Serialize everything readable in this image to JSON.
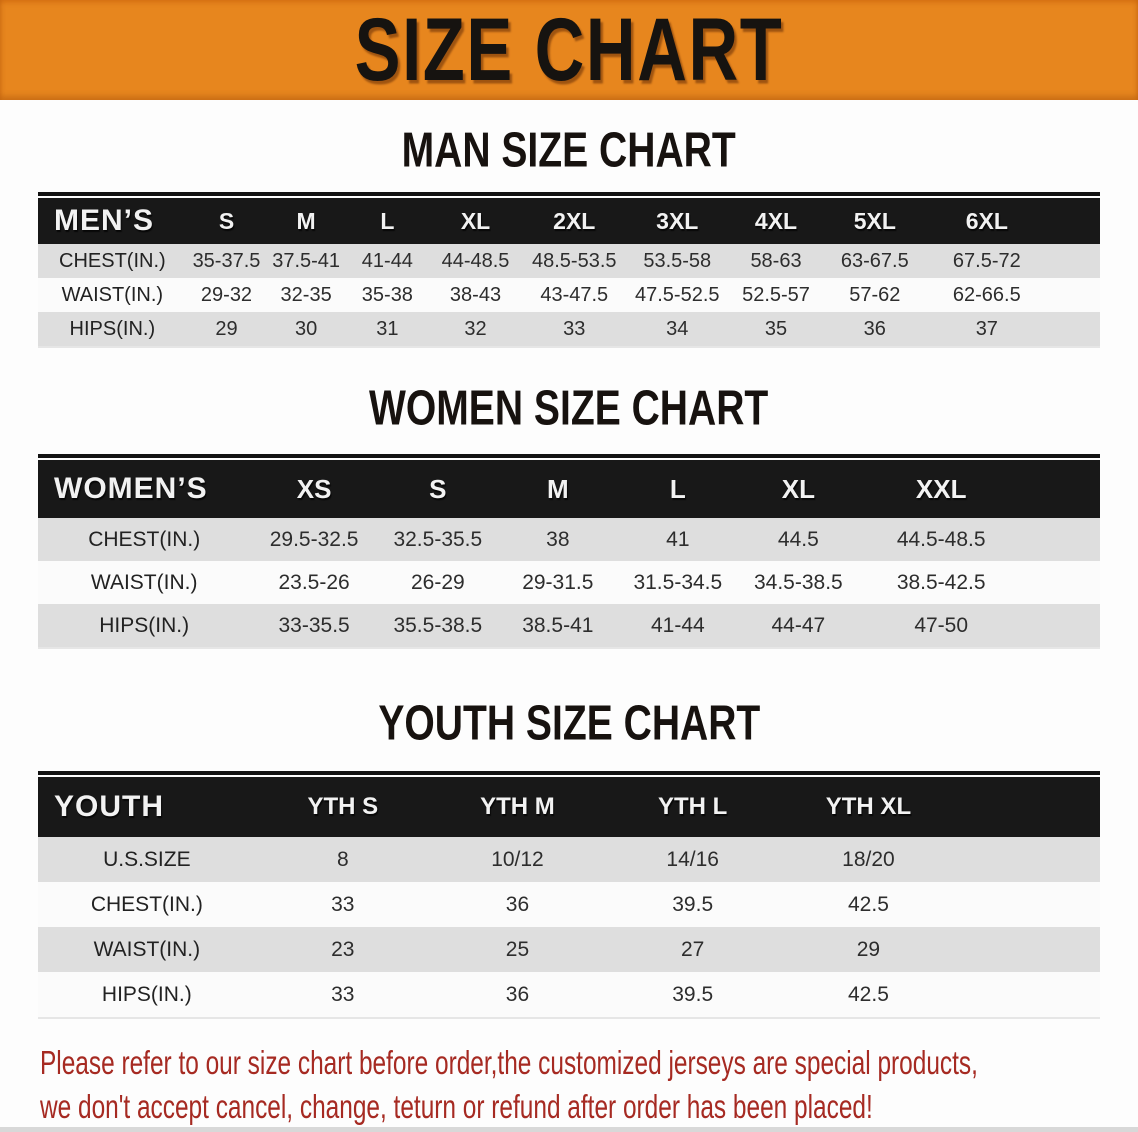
{
  "banner": {
    "title": "SIZE CHART"
  },
  "colors": {
    "banner_bg": "#E7861E",
    "banner_text": "#161310",
    "header_bar_bg": "#181818",
    "header_bar_text": "#F2F2F2",
    "row_gray": "#DEDEDE",
    "row_white": "#FBFBFB",
    "footer_red": "#A62A22"
  },
  "men": {
    "heading": "MAN SIZE CHART",
    "columns": [
      "MEN’S",
      "S",
      "M",
      "L",
      "XL",
      "2XL",
      "3XL",
      "4XL",
      "5XL",
      "6XL"
    ],
    "rows": [
      {
        "label": "CHEST(IN.)",
        "values": [
          "35-37.5",
          "37.5-41",
          "41-44",
          "44-48.5",
          "48.5-53.5",
          "53.5-58",
          "58-63",
          "63-67.5",
          "67.5-72"
        ]
      },
      {
        "label": "WAIST(IN.)",
        "values": [
          "29-32",
          "32-35",
          "35-38",
          "38-43",
          "43-47.5",
          "47.5-52.5",
          "52.5-57",
          "57-62",
          "62-66.5"
        ]
      },
      {
        "label": "HIPS(IN.)",
        "values": [
          "29",
          "30",
          "31",
          "32",
          "33",
          "34",
          "35",
          "36",
          "37"
        ]
      }
    ]
  },
  "women": {
    "heading": "WOMEN SIZE CHART",
    "columns": [
      "WOMEN’S",
      "XS",
      "S",
      "M",
      "L",
      "XL",
      "XXL"
    ],
    "rows": [
      {
        "label": "CHEST(IN.)",
        "values": [
          "29.5-32.5",
          "32.5-35.5",
          "38",
          "41",
          "44.5",
          "44.5-48.5"
        ]
      },
      {
        "label": "WAIST(IN.)",
        "values": [
          "23.5-26",
          "26-29",
          "29-31.5",
          "31.5-34.5",
          "34.5-38.5",
          "38.5-42.5"
        ]
      },
      {
        "label": "HIPS(IN.)",
        "values": [
          "33-35.5",
          "35.5-38.5",
          "38.5-41",
          "41-44",
          "44-47",
          "47-50"
        ]
      }
    ]
  },
  "youth": {
    "heading": "YOUTH SIZE CHART",
    "columns": [
      "YOUTH",
      "YTH S",
      "YTH M",
      "YTH L",
      "YTH XL"
    ],
    "rows": [
      {
        "label": "U.S.SIZE",
        "values": [
          "8",
          "10/12",
          "14/16",
          "18/20"
        ]
      },
      {
        "label": "CHEST(IN.)",
        "values": [
          "33",
          "36",
          "39.5",
          "42.5"
        ]
      },
      {
        "label": "WAIST(IN.)",
        "values": [
          "23",
          "25",
          "27",
          "29"
        ]
      },
      {
        "label": "HIPS(IN.)",
        "values": [
          "33",
          "36",
          "39.5",
          "42.5"
        ]
      }
    ]
  },
  "footer": {
    "line1": "Please refer to our size chart before order,the customized jerseys are special products,",
    "line2": "we don't accept cancel, change, teturn or refund after order has been placed!"
  }
}
